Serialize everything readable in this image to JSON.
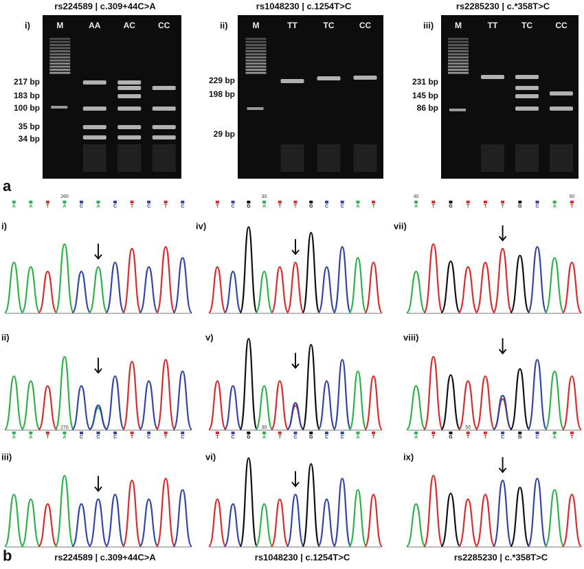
{
  "panel_a": {
    "label": "a",
    "gels": [
      {
        "title": "rs224589 | c.309+44C>A",
        "label": "i)",
        "lanes": [
          "M",
          "AA",
          "AC",
          "CC"
        ],
        "bands": [
          "217 bp",
          "183 bp",
          "100 bp",
          "35 bp",
          "34 bp"
        ]
      },
      {
        "title": "rs1048230 | c.1254T>C",
        "label": "ii)",
        "lanes": [
          "M",
          "TT",
          "TC",
          "CC"
        ],
        "bands": [
          "229 bp",
          "198 bp",
          "29 bp"
        ]
      },
      {
        "title": "rs2285230 | c.*358T>C",
        "label": "iii)",
        "lanes": [
          "M",
          "TT",
          "TC",
          "CC"
        ],
        "bands": [
          "231 bp",
          "145 bp",
          "86 bp"
        ]
      }
    ]
  },
  "panel_b": {
    "label": "b",
    "columns": [
      {
        "caption": "rs224589 | c.309+44C>A",
        "traces": [
          {
            "label": "i)",
            "positions": [
              "260"
            ],
            "bases": [
              "A",
              "A",
              "T",
              "A",
              "C",
              "A",
              "C",
              "T",
              "C",
              "T",
              "C"
            ]
          },
          {
            "label": "ii)"
          },
          {
            "label": "iii)",
            "positions": [
              "270"
            ],
            "bases": [
              "A",
              "A",
              "T",
              "A",
              "C",
              "C",
              "C",
              "T",
              "C",
              "T",
              "C"
            ]
          }
        ]
      },
      {
        "caption": "rs1048230 | c.1254T>C",
        "traces": [
          {
            "label": "iv)",
            "positions": [
              "30"
            ],
            "bases": [
              "T",
              "C",
              "G",
              "A",
              "T",
              "T",
              "G",
              "C",
              "C",
              "A",
              "T"
            ]
          },
          {
            "label": "v)"
          },
          {
            "label": "vi)",
            "positions": [
              "30"
            ],
            "bases": [
              "T",
              "C",
              "G",
              "A",
              "T",
              "C",
              "G",
              "C",
              "C",
              "A",
              "T"
            ]
          }
        ]
      },
      {
        "caption": "rs2285230 | c.*358T>C",
        "traces": [
          {
            "label": "vii)",
            "positions": [
              "40",
              "50"
            ],
            "bases": [
              "A",
              "T",
              "G",
              "T",
              "T",
              "T",
              "G",
              "C",
              "A",
              "T"
            ]
          },
          {
            "label": "viii)"
          },
          {
            "label": "ix)",
            "positions": [
              "50"
            ],
            "bases": [
              "A",
              "T",
              "G",
              "T",
              "T",
              "C",
              "G",
              "C",
              "A",
              "T"
            ]
          }
        ]
      }
    ]
  }
}
